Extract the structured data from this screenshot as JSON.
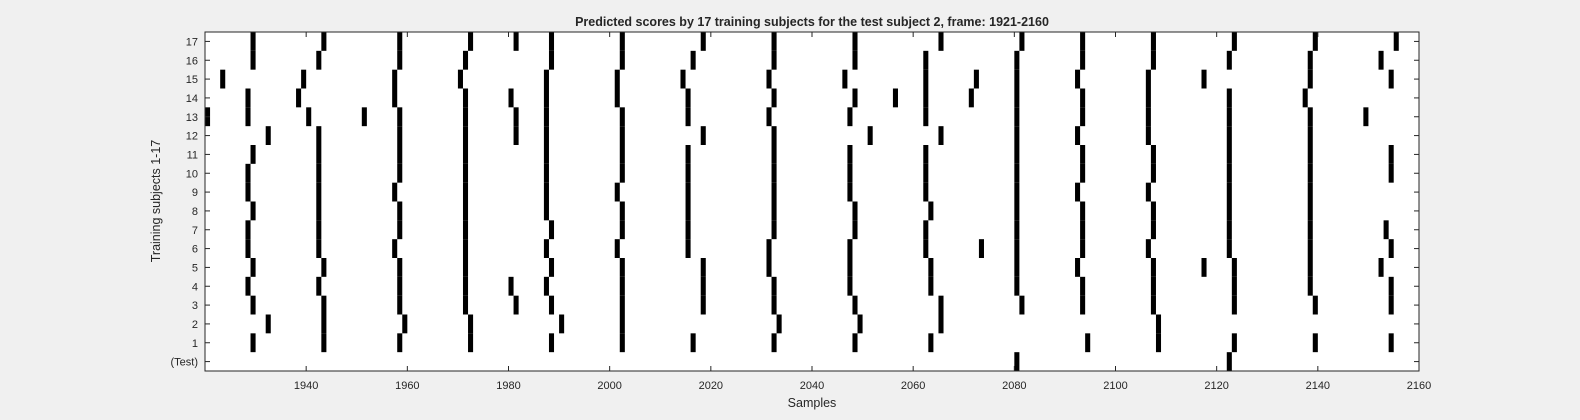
{
  "chart_data": {
    "type": "heatmap",
    "title": "Predicted scores by 17 training subjects for the test subject 2, frame: 1921-2160",
    "xlabel": "Samples",
    "ylabel": "Training subjects 1-17",
    "xlim": [
      1921,
      2160
    ],
    "x_ticks": [
      1940,
      1960,
      1980,
      2000,
      2020,
      2040,
      2060,
      2080,
      2100,
      2120,
      2140,
      2160
    ],
    "row_labels": [
      "(Test)",
      "1",
      "2",
      "3",
      "4",
      "5",
      "6",
      "7",
      "8",
      "9",
      "10",
      "11",
      "12",
      "13",
      "14",
      "15",
      "16",
      "17"
    ],
    "colors": {
      "mark": "#000000",
      "background": "#ffffff",
      "figure": "#f0f0f0"
    },
    "rows": [
      {
        "label": "(Test)",
        "samples": [
          2081,
          2123
        ]
      },
      {
        "label": "1",
        "samples": [
          1930,
          1944,
          1959,
          1973,
          1989,
          2003,
          2017,
          2033,
          2049,
          2064,
          2095,
          2109,
          2124,
          2140,
          2155
        ]
      },
      {
        "label": "2",
        "samples": [
          1933,
          1944,
          1960,
          1973,
          1991,
          2003,
          2034,
          2050,
          2066,
          2109
        ]
      },
      {
        "label": "3",
        "samples": [
          1930,
          1944,
          1959,
          1972,
          1982,
          1989,
          2003,
          2019,
          2033,
          2049,
          2066,
          2082,
          2094,
          2108,
          2124,
          2140,
          2155
        ]
      },
      {
        "label": "4",
        "samples": [
          1929,
          1943,
          1959,
          1972,
          1981,
          1988,
          2003,
          2019,
          2033,
          2048,
          2064,
          2081,
          2094,
          2108,
          2124,
          2139,
          2155
        ]
      },
      {
        "label": "5",
        "samples": [
          1930,
          1944,
          1959,
          1972,
          1989,
          2003,
          2019,
          2032,
          2048,
          2064,
          2081,
          2093,
          2108,
          2118,
          2124,
          2139,
          2153
        ]
      },
      {
        "label": "6",
        "samples": [
          1929,
          1943,
          1958,
          1972,
          1988,
          2002,
          2016,
          2032,
          2048,
          2063,
          2074,
          2081,
          2094,
          2107,
          2123,
          2139,
          2155
        ]
      },
      {
        "label": "7",
        "samples": [
          1929,
          1943,
          1959,
          1972,
          1989,
          2003,
          2016,
          2033,
          2049,
          2063,
          2081,
          2094,
          2108,
          2123,
          2139,
          2154
        ]
      },
      {
        "label": "8",
        "samples": [
          1930,
          1943,
          1959,
          1972,
          1988,
          2003,
          2016,
          2033,
          2049,
          2064,
          2081,
          2094,
          2108,
          2123,
          2139
        ]
      },
      {
        "label": "9",
        "samples": [
          1929,
          1943,
          1958,
          1972,
          1988,
          2002,
          2016,
          2033,
          2048,
          2063,
          2081,
          2093,
          2107,
          2123,
          2139
        ]
      },
      {
        "label": "10",
        "samples": [
          1929,
          1943,
          1959,
          1972,
          1988,
          2003,
          2016,
          2033,
          2048,
          2063,
          2081,
          2094,
          2108,
          2123,
          2139,
          2155
        ]
      },
      {
        "label": "11",
        "samples": [
          1930,
          1943,
          1959,
          1972,
          1988,
          2003,
          2016,
          2033,
          2048,
          2063,
          2081,
          2094,
          2108,
          2123,
          2139,
          2155
        ]
      },
      {
        "label": "12",
        "samples": [
          1933,
          1943,
          1959,
          1972,
          1982,
          1988,
          2003,
          2019,
          2033,
          2052,
          2066,
          2081,
          2093,
          2107,
          2123,
          2139
        ]
      },
      {
        "label": "13",
        "samples": [
          1921,
          1929,
          1941,
          1952,
          1959,
          1972,
          1982,
          1988,
          2003,
          2016,
          2032,
          2048,
          2063,
          2081,
          2094,
          2107,
          2123,
          2139,
          2150
        ]
      },
      {
        "label": "14",
        "samples": [
          1929,
          1939,
          1958,
          1972,
          1981,
          1988,
          2002,
          2016,
          2033,
          2049,
          2057,
          2063,
          2072,
          2081,
          2094,
          2107,
          2123,
          2138
        ]
      },
      {
        "label": "15",
        "samples": [
          1924,
          1940,
          1958,
          1971,
          1988,
          2002,
          2015,
          2032,
          2047,
          2063,
          2073,
          2081,
          2093,
          2107,
          2118,
          2139,
          2155
        ]
      },
      {
        "label": "16",
        "samples": [
          1930,
          1943,
          1959,
          1972,
          1989,
          2003,
          2017,
          2033,
          2049,
          2063,
          2081,
          2094,
          2108,
          2123,
          2139,
          2153
        ]
      },
      {
        "label": "17",
        "samples": [
          1930,
          1944,
          1959,
          1973,
          1982,
          1989,
          2003,
          2019,
          2033,
          2049,
          2066,
          2082,
          2094,
          2108,
          2124,
          2140,
          2156
        ]
      }
    ]
  }
}
